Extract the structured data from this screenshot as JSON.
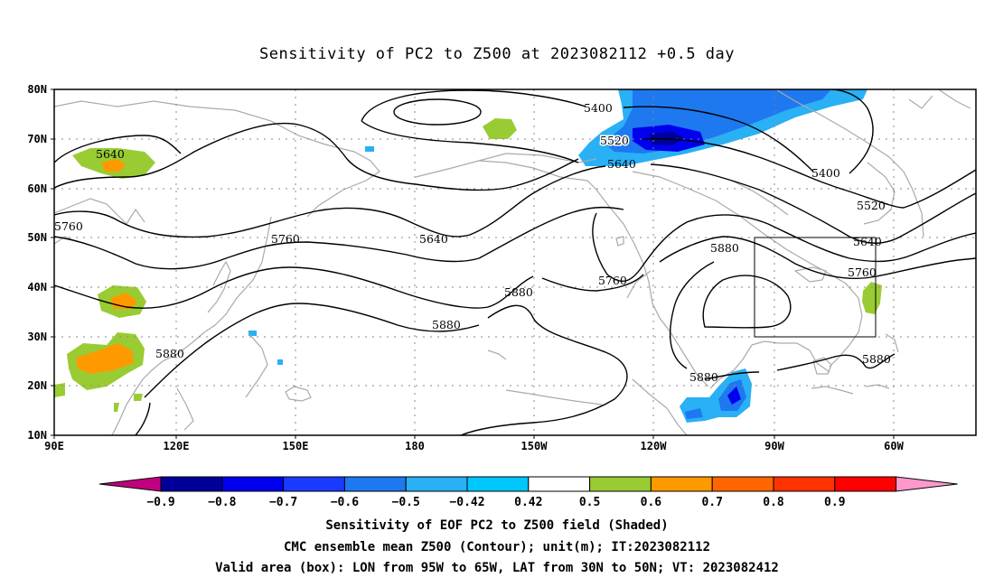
{
  "title": "Sensitivity of PC2 to Z500 at 2023082112 +0.5 day",
  "axes": {
    "lat_labels": [
      "80N",
      "70N",
      "60N",
      "50N",
      "40N",
      "30N",
      "20N",
      "10N"
    ],
    "lon_labels": [
      "90E",
      "120E",
      "150E",
      "180",
      "150W",
      "120W",
      "90W",
      "60W"
    ]
  },
  "contour_labels": [
    "5400",
    "5520",
    "5640",
    "5640",
    "5760",
    "5760",
    "5640",
    "5880",
    "5880",
    "5880",
    "5760",
    "5880",
    "5880",
    "5880",
    "5400",
    "5520",
    "5640",
    "5760"
  ],
  "colorbar": {
    "labels": [
      "-0.9",
      "-0.8",
      "-0.7",
      "-0.6",
      "-0.5",
      "-0.42",
      "0.42",
      "0.5",
      "0.6",
      "0.7",
      "0.8",
      "0.9"
    ],
    "colors": [
      "#c0007f",
      "#000099",
      "#0000ee",
      "#1a3bff",
      "#1e78f0",
      "#29b0f5",
      "#00c8ff",
      "#ffffff",
      "#99cc33",
      "#ff9900",
      "#ff6600",
      "#ff3300",
      "#ff0000",
      "#ff99cc"
    ]
  },
  "caption": {
    "line1": "Sensitivity of EOF PC2 to Z500 field (Shaded)",
    "line2": "CMC ensemble mean Z500 (Contour); unit(m); IT:2023082112",
    "line3": "Valid area (box): LON from 95W to 65W, LAT from 30N to 50N; VT: 2023082412"
  }
}
